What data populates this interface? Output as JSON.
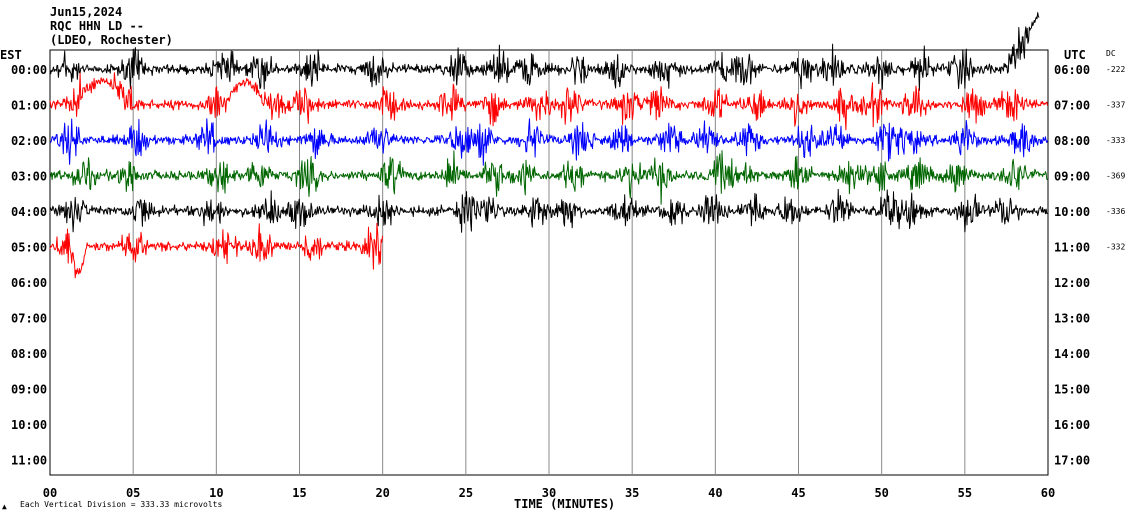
{
  "header": {
    "date": "Jun15,2024",
    "station": "RQC HHN LD --",
    "network": "(LDEO, Rochester)"
  },
  "axis": {
    "left_zone": "EST",
    "right_zone": "UTC",
    "dc_label": "DC",
    "xlabel": "TIME (MINUTES)",
    "footer_note": "Each Vertical Division =  333.33 microvolts",
    "footer_mark": "▲"
  },
  "chart_data": {
    "type": "line",
    "title": "",
    "xlabel": "TIME (MINUTES)",
    "xlim": [
      0,
      60
    ],
    "x_ticks": [
      "00",
      "05",
      "10",
      "15",
      "20",
      "25",
      "30",
      "35",
      "40",
      "45",
      "50",
      "55",
      "60"
    ],
    "left_hours": [
      "00:00",
      "01:00",
      "02:00",
      "03:00",
      "04:00",
      "05:00",
      "06:00",
      "07:00",
      "08:00",
      "09:00",
      "10:00",
      "11:00"
    ],
    "right_hours": [
      "06:00",
      "07:00",
      "08:00",
      "09:00",
      "10:00",
      "11:00",
      "12:00",
      "13:00",
      "14:00",
      "15:00",
      "16:00",
      "17:00"
    ],
    "series": [
      {
        "row": 0,
        "color": "#000000",
        "dc": "-222",
        "end_minute": 59.5
      },
      {
        "row": 1,
        "color": "#ff0000",
        "dc": "-337",
        "end_minute": 60
      },
      {
        "row": 2,
        "color": "#0000ff",
        "dc": "-333",
        "end_minute": 60
      },
      {
        "row": 3,
        "color": "#006600",
        "dc": "-369",
        "end_minute": 60
      },
      {
        "row": 4,
        "color": "#000000",
        "dc": "-336",
        "end_minute": 60
      },
      {
        "row": 5,
        "color": "#ff0000",
        "dc": "-332",
        "end_minute": 20
      }
    ],
    "grid": true
  }
}
